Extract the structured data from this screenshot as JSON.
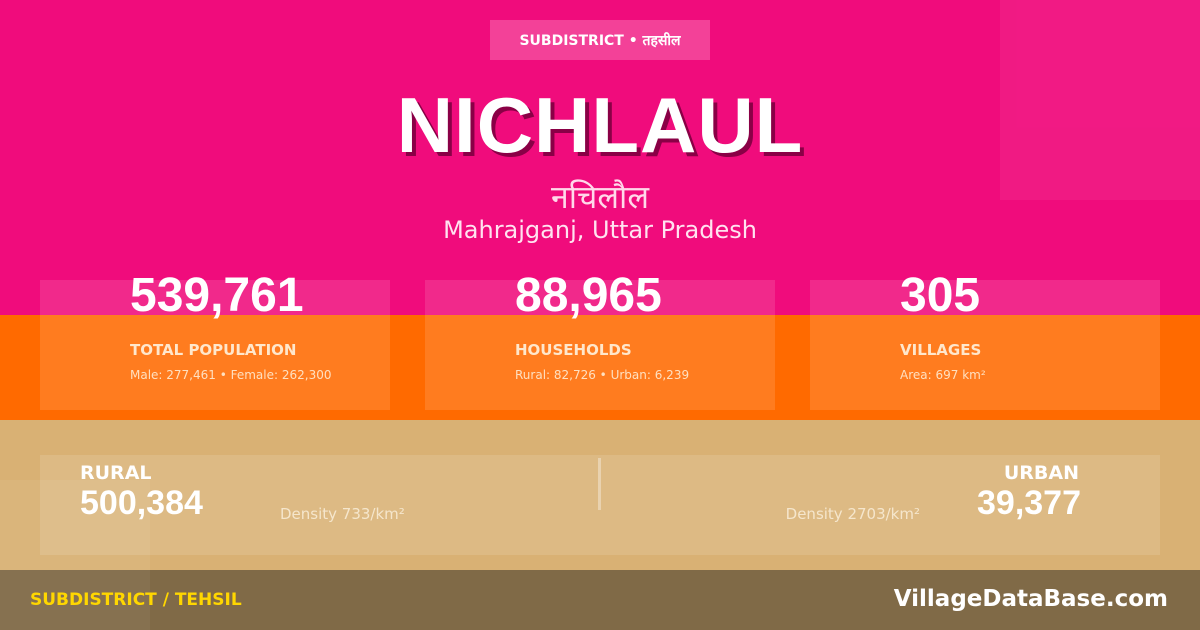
{
  "badge": "SUBDISTRICT • तहसील",
  "title": "NICHLAUL",
  "title_hindi": "नचिलौल",
  "location": "Mahrajganj, Uttar Pradesh",
  "stats": [
    {
      "value": "539,761",
      "label": "TOTAL POPULATION",
      "sub": "Male: 277,461 • Female: 262,300"
    },
    {
      "value": "88,965",
      "label": "HOUSEHOLDS",
      "sub": "Rural: 82,726 • Urban: 6,239"
    },
    {
      "value": "305",
      "label": "VILLAGES",
      "sub": "Area: 697 km²"
    }
  ],
  "rural": {
    "label": "RURAL",
    "value": "500,384",
    "density": "Density 733/km²"
  },
  "urban": {
    "label": "URBAN",
    "value": "39,377",
    "density": "Density 2703/km²"
  },
  "footer": {
    "left": "SUBDISTRICT / TEHSIL",
    "right": "VillageDataBase.com"
  },
  "colors": {
    "pink": "#f00c7c",
    "orange": "#ff6a00",
    "tan": "#d9b174",
    "footer": "#806a47",
    "accent": "#ffd700"
  }
}
